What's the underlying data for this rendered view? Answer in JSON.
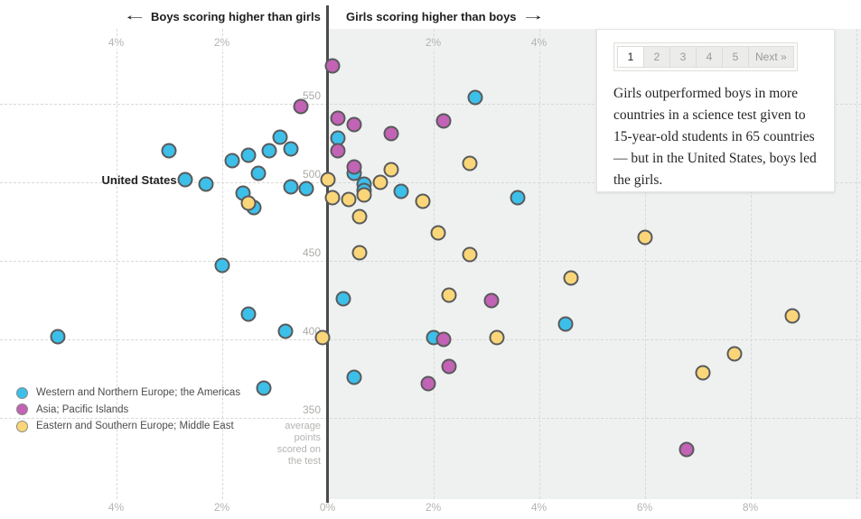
{
  "header": {
    "left_arrow": "←",
    "left_label": "Boys scoring higher than girls",
    "right_label": "Girls scoring higher than boys",
    "right_arrow": "→"
  },
  "panel": {
    "pagination": [
      {
        "label": "1",
        "active": true
      },
      {
        "label": "2",
        "active": false
      },
      {
        "label": "3",
        "active": false
      },
      {
        "label": "4",
        "active": false
      },
      {
        "label": "5",
        "active": false
      },
      {
        "label": "Next »",
        "active": false
      }
    ],
    "caption": "Girls outperformed boys in more countries in a science test given to 15-year-old students in 65 countries — but in the United States, boys led the girls."
  },
  "axes": {
    "top_ticks": [
      {
        "label": "4%",
        "pct": -4
      },
      {
        "label": "2%",
        "pct": -2
      },
      {
        "label": "2%",
        "pct": 2
      },
      {
        "label": "4%",
        "pct": 4
      }
    ],
    "bottom_ticks": [
      {
        "label": "4%",
        "pct": -4
      },
      {
        "label": "2%",
        "pct": -2
      },
      {
        "label": "0%",
        "pct": 0
      },
      {
        "label": "2%",
        "pct": 2
      },
      {
        "label": "4%",
        "pct": 4
      },
      {
        "label": "6%",
        "pct": 6
      },
      {
        "label": "8%",
        "pct": 8
      }
    ],
    "grid_pcts": [
      -4,
      -2,
      2,
      4,
      6,
      8,
      10
    ],
    "y_ticks": [
      350,
      400,
      450,
      500,
      550
    ],
    "y_note_lines": [
      "average",
      "points",
      "scored on",
      "the test"
    ]
  },
  "annotation": {
    "text": "United States",
    "pct": -2.7,
    "score": 502
  },
  "colors": {
    "blue": "#3cbfe8",
    "magenta": "#c263b5",
    "yellow": "#fad679",
    "marker_stroke": "#595a5c",
    "girls_region_bg": "#eef1ef"
  },
  "chart_data": {
    "type": "scatter",
    "x_axis_note": "percent score gap; negative = boys scored higher, positive = girls scored higher",
    "x_range_pct": [
      -6.2,
      10.1
    ],
    "y_label": "average points scored on the test",
    "y_range": [
      320,
      590
    ],
    "grid": true,
    "legend_position": "bottom-left",
    "series": [
      {
        "name": "Western and Northern Europe; the Americas",
        "color": "#3cbfe8",
        "points": [
          [
            -5.1,
            402
          ],
          [
            -3.0,
            520
          ],
          [
            -2.7,
            502
          ],
          [
            -2.3,
            499
          ],
          [
            -2.0,
            447
          ],
          [
            -1.8,
            514
          ],
          [
            -1.6,
            493
          ],
          [
            -1.5,
            517
          ],
          [
            -1.5,
            416
          ],
          [
            -1.4,
            484
          ],
          [
            -1.3,
            506
          ],
          [
            -1.2,
            369
          ],
          [
            -1.1,
            520
          ],
          [
            -0.9,
            529
          ],
          [
            -0.8,
            405
          ],
          [
            -0.7,
            521
          ],
          [
            -0.7,
            497
          ],
          [
            -0.4,
            496
          ],
          [
            0.2,
            528
          ],
          [
            0.3,
            426
          ],
          [
            0.5,
            506
          ],
          [
            0.5,
            376
          ],
          [
            0.7,
            499
          ],
          [
            0.7,
            495
          ],
          [
            1.4,
            494
          ],
          [
            2.0,
            401
          ],
          [
            2.8,
            554
          ],
          [
            3.6,
            490
          ],
          [
            4.5,
            410
          ]
        ]
      },
      {
        "name": "Asia; Pacific Islands",
        "color": "#c263b5",
        "points": [
          [
            -0.5,
            548
          ],
          [
            0.1,
            574
          ],
          [
            0.2,
            541
          ],
          [
            0.2,
            520
          ],
          [
            0.5,
            537
          ],
          [
            0.5,
            510
          ],
          [
            1.2,
            531
          ],
          [
            1.9,
            372
          ],
          [
            2.2,
            539
          ],
          [
            2.2,
            400
          ],
          [
            2.3,
            383
          ],
          [
            3.1,
            425
          ],
          [
            6.8,
            330
          ]
        ]
      },
      {
        "name": "Eastern and Southern Europe; Middle East",
        "color": "#fad679",
        "points": [
          [
            -1.5,
            487
          ],
          [
            -0.1,
            401
          ],
          [
            0.0,
            502
          ],
          [
            0.1,
            490
          ],
          [
            0.4,
            489
          ],
          [
            0.6,
            478
          ],
          [
            0.6,
            455
          ],
          [
            0.7,
            492
          ],
          [
            1.0,
            500
          ],
          [
            1.2,
            508
          ],
          [
            1.8,
            488
          ],
          [
            2.1,
            468
          ],
          [
            2.3,
            428
          ],
          [
            2.7,
            512
          ],
          [
            2.7,
            454
          ],
          [
            3.2,
            401
          ],
          [
            4.6,
            439
          ],
          [
            6.0,
            465
          ],
          [
            7.1,
            379
          ],
          [
            7.7,
            391
          ],
          [
            8.8,
            415
          ]
        ]
      }
    ]
  }
}
